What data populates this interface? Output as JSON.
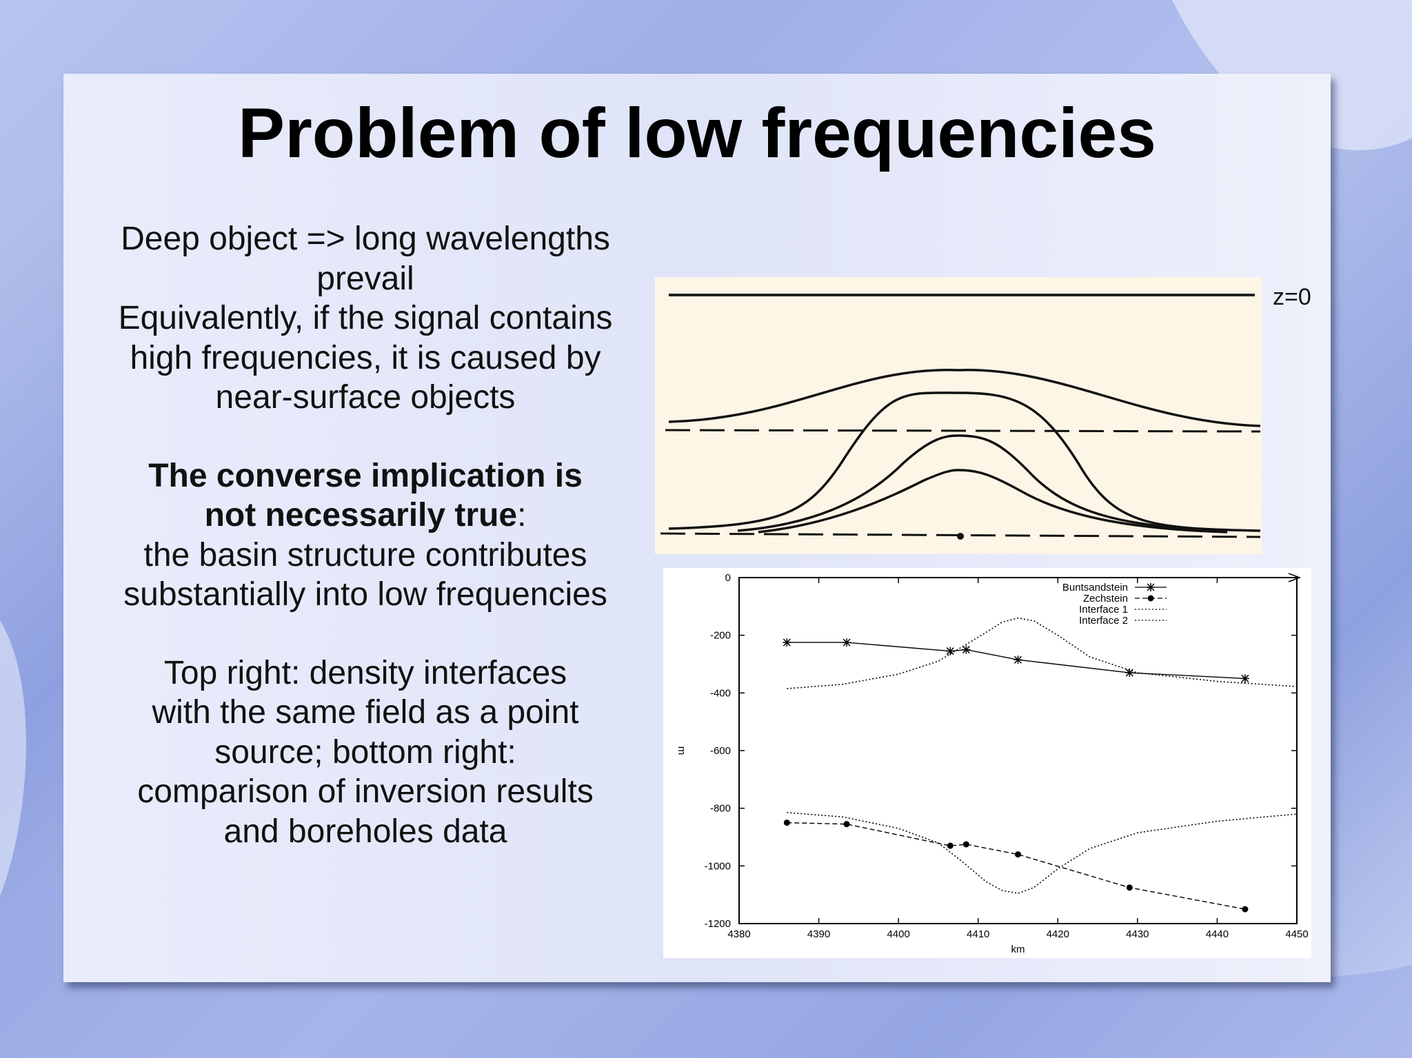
{
  "slide": {
    "title": "Problem of low frequencies",
    "paragraph1_lines": [
      "Deep object  => long wavelengths",
      "prevail",
      "Equivalently, if the signal contains",
      "high frequencies, it is caused by",
      "near-surface objects"
    ],
    "paragraph2_bold1": "The converse implication is",
    "paragraph2_bold2": "not necessarily true",
    "paragraph2_colon": ":",
    "paragraph2_lines": [
      "the basin structure contributes",
      "substantially into low frequencies"
    ],
    "paragraph3_lines": [
      "Top right: density interfaces",
      "with the same field as a point",
      "source; bottom right:",
      "comparison of inversion results",
      "and boreholes data"
    ]
  },
  "top_figure": {
    "label": "z=0",
    "background_color": "#fdf6e6"
  },
  "chart_data": {
    "type": "line",
    "xlabel": "km",
    "ylabel": "m",
    "xlim": [
      4380,
      4450
    ],
    "ylim": [
      -1200,
      0
    ],
    "xticks": [
      "4380",
      "4390",
      "4400",
      "4410",
      "4420",
      "4430",
      "4440",
      "4450"
    ],
    "yticks": [
      "0",
      "-200",
      "-400",
      "-600",
      "-800",
      "-1000",
      "-1200"
    ],
    "legend_position": "top-right",
    "series": [
      {
        "name": "Buntsandstein",
        "marker": "star",
        "style": "solid",
        "x": [
          4386,
          4393.5,
          4406.5,
          4408.5,
          4415,
          4429,
          4443.5
        ],
        "y": [
          -225,
          -225,
          -255,
          -250,
          -285,
          -330,
          -350
        ]
      },
      {
        "name": "Zechstein",
        "marker": "dot",
        "style": "dashed",
        "x": [
          4386,
          4393.5,
          4406.5,
          4408.5,
          4415,
          4429,
          4443.5
        ],
        "y": [
          -850,
          -855,
          -930,
          -925,
          -960,
          -1075,
          -1150
        ]
      },
      {
        "name": "Interface 1",
        "marker": "none",
        "style": "dotted",
        "x": [
          4386,
          4393,
          4400,
          4405,
          4408,
          4411,
          4413,
          4415,
          4417,
          4420,
          4424,
          4430,
          4440,
          4450
        ],
        "y": [
          -385,
          -370,
          -335,
          -290,
          -240,
          -190,
          -155,
          -140,
          -150,
          -200,
          -275,
          -330,
          -360,
          -378
        ]
      },
      {
        "name": "Interface 2",
        "marker": "none",
        "style": "dotted",
        "x": [
          4386,
          4393,
          4400,
          4405,
          4408,
          4411,
          4413,
          4415,
          4417,
          4420,
          4424,
          4430,
          4440,
          4450
        ],
        "y": [
          -815,
          -830,
          -870,
          -920,
          -985,
          -1055,
          -1085,
          -1095,
          -1075,
          -1010,
          -940,
          -885,
          -845,
          -820
        ]
      }
    ]
  }
}
